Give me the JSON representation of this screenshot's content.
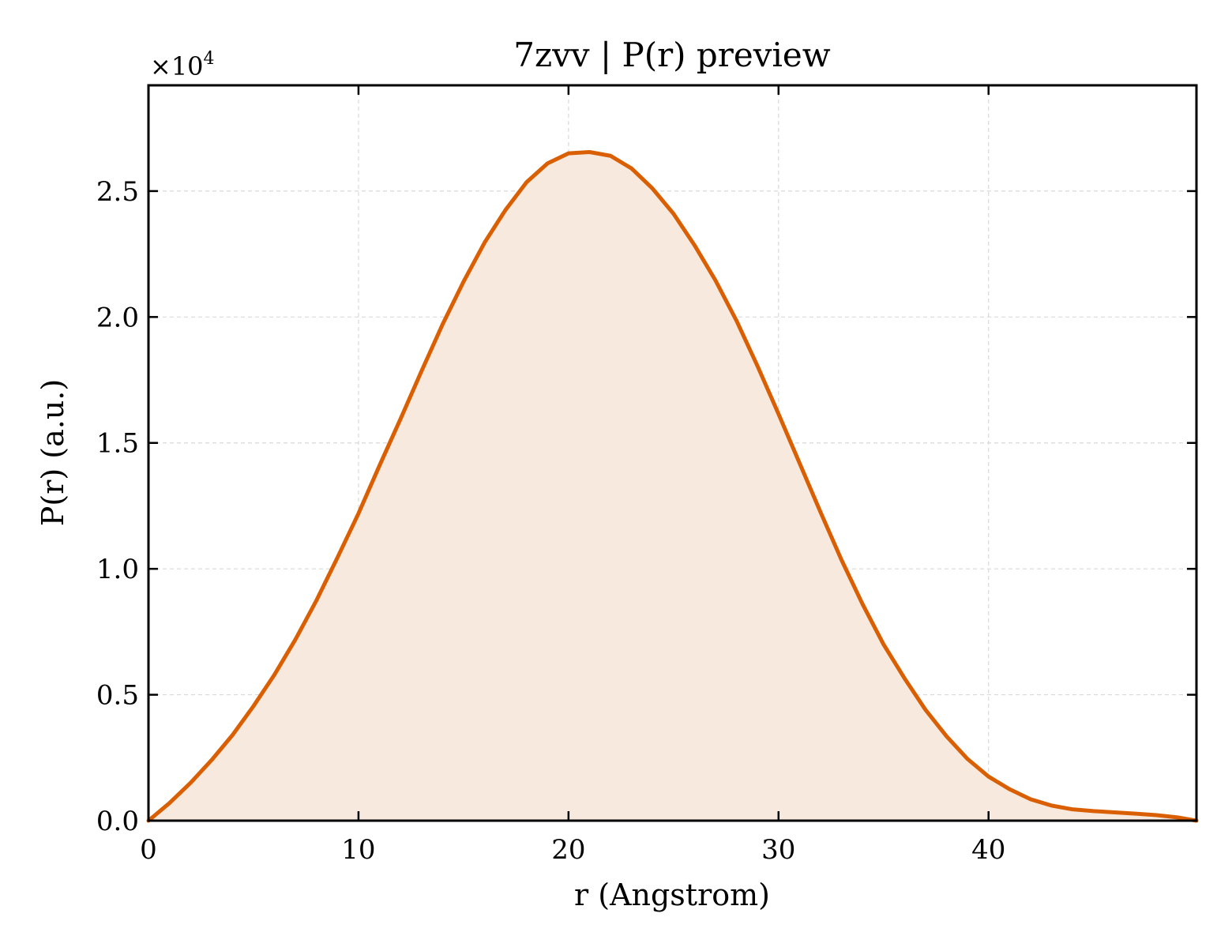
{
  "chart_data": {
    "type": "area",
    "title": "7zvv | P(r) preview",
    "xlabel": "r (Angstrom)",
    "ylabel": "P(r) (a.u.)",
    "y_offset_label": "×10",
    "y_offset_exponent": "4",
    "xlim": [
      0,
      49.9
    ],
    "ylim": [
      0,
      29200
    ],
    "xticks": [
      0,
      10,
      20,
      30,
      40
    ],
    "xtick_labels": [
      "0",
      "10",
      "20",
      "30",
      "40"
    ],
    "yticks": [
      0,
      5000,
      10000,
      15000,
      20000,
      25000
    ],
    "ytick_labels": [
      "0.0",
      "0.5",
      "1.0",
      "1.5",
      "2.0",
      "2.5"
    ],
    "grid": true,
    "series": [
      {
        "color": "#d95f02",
        "fill_color": "#f8e9df",
        "x": [
          0,
          1,
          2,
          3,
          4,
          5,
          6,
          7,
          8,
          9,
          10,
          11,
          12,
          13,
          14,
          15,
          16,
          17,
          18,
          19,
          20,
          21,
          22,
          23,
          24,
          25,
          26,
          27,
          28,
          29,
          30,
          31,
          32,
          33,
          34,
          35,
          36,
          37,
          38,
          39,
          40,
          41,
          42,
          43,
          44,
          45,
          46,
          47,
          48,
          49,
          49.9
        ],
        "y": [
          0,
          700,
          1500,
          2400,
          3400,
          4550,
          5800,
          7200,
          8750,
          10450,
          12200,
          14100,
          15950,
          17850,
          19700,
          21400,
          22950,
          24250,
          25350,
          26100,
          26500,
          26550,
          26400,
          25900,
          25100,
          24100,
          22850,
          21450,
          19850,
          18050,
          16150,
          14200,
          12250,
          10350,
          8600,
          7000,
          5650,
          4400,
          3350,
          2450,
          1750,
          1250,
          850,
          600,
          450,
          380,
          330,
          280,
          220,
          130,
          0
        ]
      }
    ]
  }
}
